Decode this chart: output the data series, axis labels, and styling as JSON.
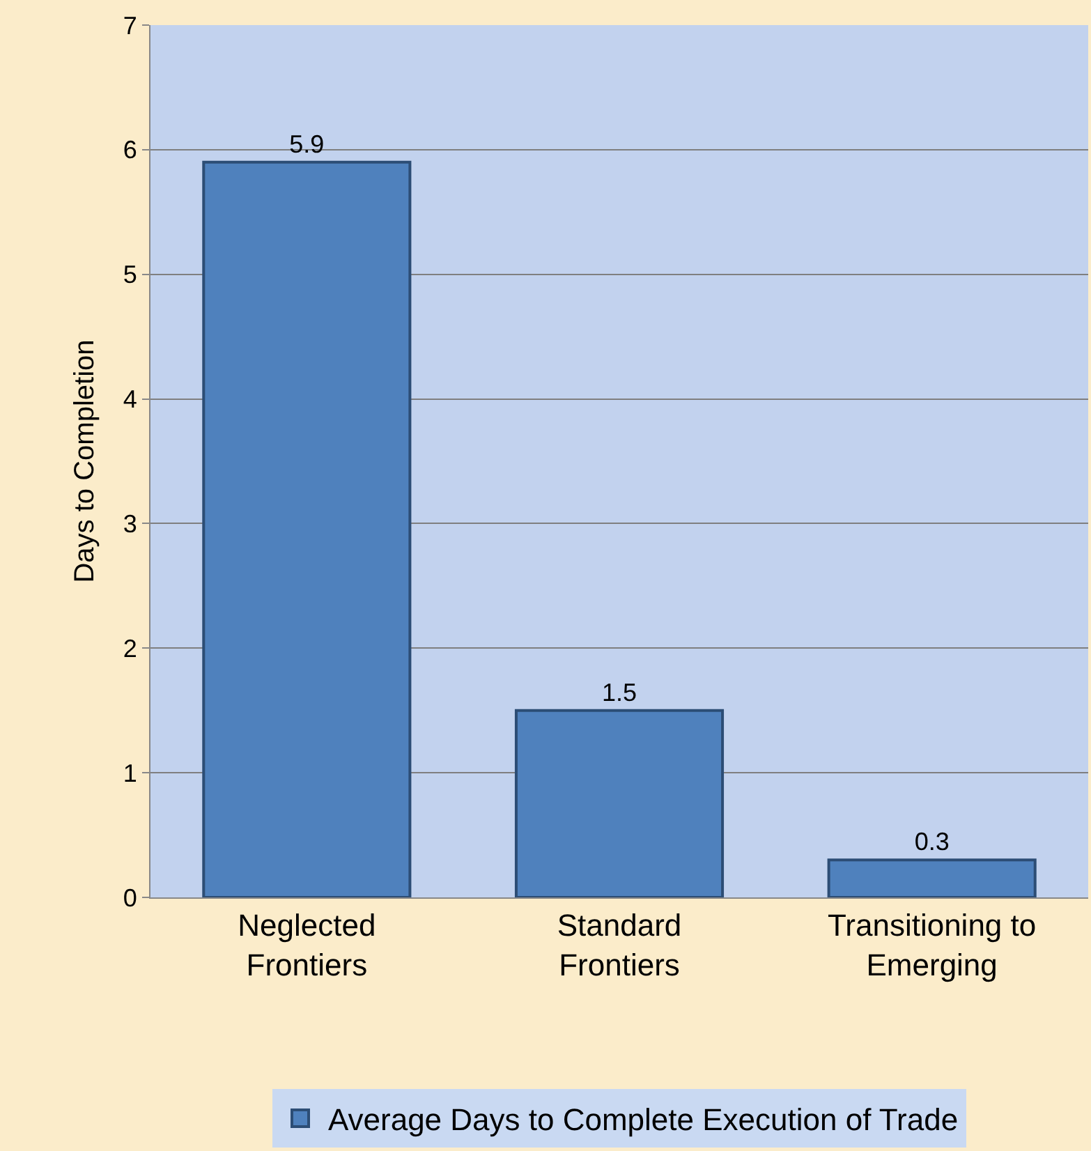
{
  "chart_data": {
    "type": "bar",
    "ylabel": "Days to Completion",
    "categories": [
      "Neglected Frontiers",
      "Standard Frontiers",
      "Transitioning to Emerging"
    ],
    "series": [
      {
        "name": "Average Days to Complete Execution of Trade",
        "color": "#4f81bd",
        "values": [
          5.9,
          1.5,
          0.3
        ]
      }
    ],
    "ylim": [
      0,
      7
    ],
    "yticks": [
      0,
      1,
      2,
      3,
      4,
      5,
      6,
      7
    ],
    "grid": "y",
    "legend": "bottom",
    "data_labels": true
  }
}
